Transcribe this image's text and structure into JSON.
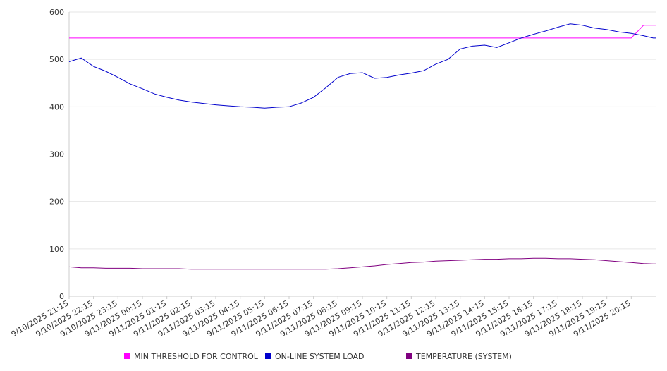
{
  "chart_data": {
    "type": "line",
    "title": "",
    "xlabel": "",
    "ylabel": "",
    "ylim": [
      0,
      600
    ],
    "yticks": [
      0,
      100,
      200,
      300,
      400,
      500,
      600
    ],
    "grid": "horizontal",
    "legend_position": "bottom",
    "x_tick_labels": [
      "9/10/2025 21:15",
      "9/10/2025 22:15",
      "9/10/2025 23:15",
      "9/11/2025 00:15",
      "9/11/2025 01:15",
      "9/11/2025 02:15",
      "9/11/2025 03:15",
      "9/11/2025 04:15",
      "9/11/2025 05:15",
      "9/11/2025 06:15",
      "9/11/2025 07:15",
      "9/11/2025 08:15",
      "9/11/2025 09:15",
      "9/11/2025 10:15",
      "9/11/2025 11:15",
      "9/11/2025 12:15",
      "9/11/2025 13:15",
      "9/11/2025 14:15",
      "9/11/2025 15:15",
      "9/11/2025 16:15",
      "9/11/2025 17:15",
      "9/11/2025 18:15",
      "9/11/2025 19:15",
      "9/11/2025 20:15"
    ],
    "x_hours": [
      0,
      0.5,
      1,
      1.5,
      2,
      2.5,
      3,
      3.5,
      4,
      4.5,
      5,
      5.5,
      6,
      6.5,
      7,
      7.5,
      8,
      8.5,
      9,
      9.5,
      10,
      10.5,
      11,
      11.5,
      12,
      12.5,
      13,
      13.5,
      14,
      14.5,
      15,
      15.5,
      16,
      16.5,
      17,
      17.5,
      18,
      18.5,
      19,
      19.5,
      20,
      20.5,
      21,
      21.5,
      22,
      22.5,
      23,
      23.5,
      23.9
    ],
    "series": [
      {
        "name": "MIN THRESHOLD FOR CONTROL",
        "color": "#ff00ff",
        "values": [
          545,
          545,
          545,
          545,
          545,
          545,
          545,
          545,
          545,
          545,
          545,
          545,
          545,
          545,
          545,
          545,
          545,
          545,
          545,
          545,
          545,
          545,
          545,
          545,
          545,
          545,
          545,
          545,
          545,
          545,
          545,
          545,
          545,
          545,
          545,
          545,
          545,
          545,
          545,
          545,
          545,
          545,
          545,
          545,
          545,
          545,
          545,
          572,
          572
        ]
      },
      {
        "name": "ON-LINE SYSTEM LOAD",
        "color": "#0000cc",
        "values": [
          495,
          503,
          485,
          475,
          462,
          448,
          438,
          427,
          420,
          414,
          410,
          407,
          404,
          402,
          400,
          399,
          397,
          399,
          400,
          408,
          420,
          440,
          462,
          470,
          472,
          460,
          462,
          467,
          471,
          476,
          490,
          500,
          522,
          528,
          530,
          525,
          535,
          545,
          553,
          560,
          568,
          575,
          572,
          566,
          563,
          558,
          555,
          550,
          545
        ]
      },
      {
        "name": "TEMPERATURE (SYSTEM)",
        "color": "#800080",
        "values": [
          62,
          60,
          60,
          59,
          59,
          59,
          58,
          58,
          58,
          58,
          57,
          57,
          57,
          57,
          57,
          57,
          57,
          57,
          57,
          57,
          57,
          57,
          58,
          60,
          62,
          64,
          67,
          69,
          71,
          72,
          74,
          75,
          76,
          77,
          78,
          78,
          79,
          79,
          80,
          80,
          79,
          79,
          78,
          77,
          75,
          73,
          71,
          69,
          68
        ]
      }
    ]
  }
}
